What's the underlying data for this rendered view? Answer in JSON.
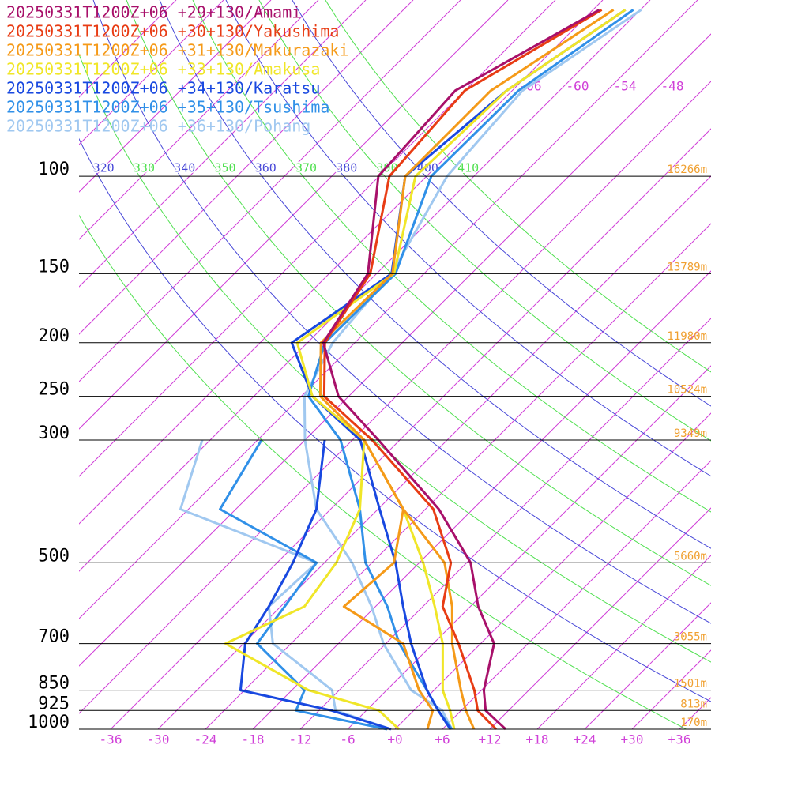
{
  "chart_data": {
    "type": "skewt",
    "xlim": [
      -40,
      40
    ],
    "ylim": [
      1000,
      48
    ],
    "xticks": [
      -36,
      -30,
      -24,
      -18,
      -12,
      -6,
      {
        "value": 0,
        "label": "+0"
      },
      {
        "value": 6,
        "label": "+6"
      },
      {
        "value": 12,
        "label": "+12"
      },
      {
        "value": 18,
        "label": "+18"
      },
      {
        "value": 24,
        "label": "+24"
      },
      {
        "value": 30,
        "label": "+30"
      },
      {
        "value": 36,
        "label": "+36"
      }
    ],
    "yticks": [
      100,
      150,
      200,
      250,
      300,
      500,
      700,
      850,
      925,
      1000
    ],
    "heights": [
      "16266m",
      "13789m",
      "11980m",
      "10524m",
      "9349m",
      "5660m",
      "3055m",
      "1501m",
      "813m",
      "170m"
    ],
    "isotherms": [
      -120,
      -114,
      -108,
      -102,
      -96,
      -90,
      -84,
      -78,
      -72,
      -66,
      -60,
      -54,
      -48,
      -42,
      -36,
      -30,
      -24,
      -18,
      -12,
      -6,
      0,
      6,
      12,
      18,
      24,
      30,
      36
    ],
    "isotherm_labels": [
      -66,
      -60,
      -54,
      -48
    ],
    "isotherm_color": "#d040d8",
    "isentropes": [
      310,
      320,
      330,
      340,
      350,
      360,
      370,
      380,
      390,
      400,
      410
    ],
    "isentrope_colors": [
      "#50e050",
      "#4848d8"
    ],
    "height_color": "#f0a030",
    "pressure": [
      1000,
      925,
      850,
      700,
      600,
      500,
      400,
      300,
      250,
      200,
      150,
      100,
      70,
      50
    ],
    "series": [
      {
        "name": "20250331T1200Z+06 +29+130/Amami",
        "color": "#a8106a",
        "values": [
          14.0,
          9.1,
          6.3,
          1.7,
          -5.0,
          -11.5,
          -22.3,
          -38.7,
          -49.3,
          -58.0,
          -61.1,
          -72.1,
          -73.2,
          -65.2
        ],
        "dewpoint": [
          null,
          null,
          null,
          null,
          null,
          null,
          null,
          null,
          null,
          null,
          null,
          null,
          null,
          null
        ]
      },
      {
        "name": "20250331T1200Z+06 +30+130/Yakushima",
        "color": "#e83c14",
        "values": [
          12.8,
          8.1,
          5.1,
          -2.8,
          -9.5,
          -14.0,
          -23.0,
          -39.5,
          -51.1,
          -57.8,
          -60.8,
          -70.7,
          -72.0,
          -64.9
        ],
        "dewpoint": [
          null,
          null,
          null,
          null,
          null,
          null,
          null,
          null,
          null,
          null,
          null,
          null,
          null,
          null
        ]
      },
      {
        "name": "20250331T1200Z+06 +31+130/Makurazaki",
        "color": "#f59a18",
        "values": [
          10.0,
          6.6,
          3.4,
          -3.6,
          -8.3,
          -14.8,
          -26.8,
          -40.5,
          -51.6,
          -58.3,
          -58.0,
          -68.7,
          -68.7,
          -63.4
        ],
        "dewpoint": [
          4.1,
          2.4,
          -1.9,
          -9.8,
          -22.0,
          -21.2,
          -26.8,
          -40.5,
          null,
          null,
          null,
          null,
          null,
          null
        ]
      },
      {
        "name": "20250331T1200Z+06 +33+130/Amakusa",
        "color": "#f0e628",
        "values": [
          7.5,
          4.6,
          1.1,
          -4.8,
          -10.5,
          -17.5,
          -26.8,
          -40.5,
          -52.6,
          -61.3,
          -57.8,
          -67.4,
          -66.7,
          -61.9
        ],
        "dewpoint": [
          0.5,
          -4.4,
          -15.9,
          -32.3,
          -27.0,
          -28.5,
          -32.3,
          -40.5,
          null,
          null,
          null,
          null,
          null,
          null
        ]
      },
      {
        "name": "20250331T1200Z+06 +34+130/Karatsu",
        "color": "#1848e0",
        "values": [
          7.0,
          3.1,
          -0.9,
          -8.8,
          -14.5,
          -21.0,
          -29.8,
          -41.0,
          -52.6,
          -62.0,
          -58.1,
          -68.7,
          -66.7,
          -61.9
        ],
        "dewpoint": [
          -0.5,
          -10.4,
          -24.5,
          -29.8,
          -31.5,
          -34.0,
          -37.8,
          -45.5,
          null,
          null,
          null,
          null,
          null,
          null
        ]
      },
      {
        "name": "20250331T1200Z+06 +35+130/Tsushima",
        "color": "#3090e8",
        "values": [
          7.2,
          3.1,
          -0.9,
          -10.3,
          -16.5,
          -24.8,
          -32.3,
          -43.5,
          -53.1,
          -57.8,
          -57.6,
          -65.4,
          -65.2,
          -60.9
        ],
        "dewpoint": [
          -1.0,
          -14.9,
          -16.4,
          -28.3,
          -29.5,
          -31.0,
          -50.0,
          -53.5,
          null,
          null,
          null,
          null,
          null,
          null
        ]
      },
      {
        "name": "20250331T1200Z+06 +36+130/Pohang",
        "color": "#a0c8f0",
        "values": [
          7.2,
          3.6,
          -2.9,
          -12.3,
          -18.5,
          -26.5,
          -37.8,
          -48.0,
          -53.6,
          -56.8,
          -58.1,
          -63.4,
          -64.7,
          -59.9
        ],
        "dewpoint": [
          -0.5,
          -9.9,
          -12.9,
          -26.3,
          -31.5,
          -31.0,
          -55.0,
          -61.0,
          null,
          null,
          null,
          null,
          null,
          null
        ]
      }
    ]
  }
}
